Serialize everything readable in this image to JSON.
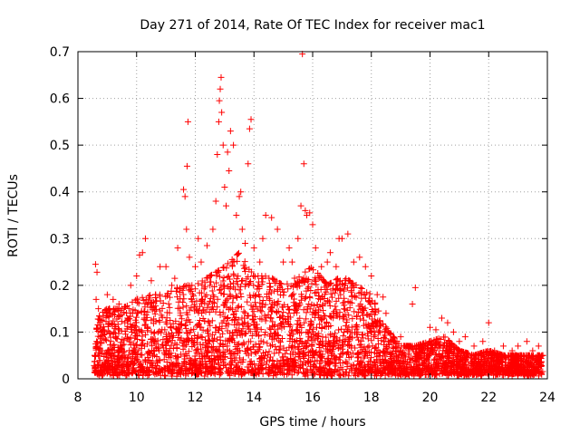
{
  "chart_data": {
    "type": "scatter",
    "title": "Day 271 of 2014, Rate Of TEC Index for receiver mac1",
    "xlabel": "GPS time / hours",
    "ylabel": "ROTI / TECUs",
    "xlim": [
      8,
      24
    ],
    "ylim": [
      0,
      0.7
    ],
    "grid": true,
    "x_ticks": [
      8,
      10,
      12,
      14,
      16,
      18,
      20,
      22,
      24
    ],
    "x_tick_labels": [
      "8",
      "10",
      "12",
      "14",
      "16",
      "18",
      "20",
      "22",
      "24"
    ],
    "y_ticks": [
      0,
      0.1,
      0.2,
      0.3,
      0.4,
      0.5,
      0.6,
      0.7
    ],
    "y_tick_labels": [
      "0",
      "0.1",
      "0.2",
      "0.3",
      "0.4",
      "0.5",
      "0.6",
      "0.7"
    ],
    "marker": "+",
    "series": [
      {
        "name": "mac1 ROTI",
        "color": "#ff0000",
        "points": [
          [
            8.6,
            0.245
          ],
          [
            8.65,
            0.228
          ],
          [
            8.62,
            0.17
          ],
          [
            8.7,
            0.15
          ],
          [
            8.75,
            0.12
          ],
          [
            8.8,
            0.1
          ],
          [
            9.0,
            0.18
          ],
          [
            9.2,
            0.17
          ],
          [
            9.4,
            0.16
          ],
          [
            9.6,
            0.12
          ],
          [
            9.8,
            0.2
          ],
          [
            10.0,
            0.22
          ],
          [
            10.1,
            0.265
          ],
          [
            10.2,
            0.27
          ],
          [
            10.3,
            0.3
          ],
          [
            10.5,
            0.21
          ],
          [
            10.8,
            0.24
          ],
          [
            11.0,
            0.24
          ],
          [
            11.2,
            0.2
          ],
          [
            11.3,
            0.215
          ],
          [
            11.4,
            0.28
          ],
          [
            11.6,
            0.405
          ],
          [
            11.65,
            0.39
          ],
          [
            11.7,
            0.32
          ],
          [
            11.72,
            0.455
          ],
          [
            11.75,
            0.55
          ],
          [
            11.8,
            0.26
          ],
          [
            12.0,
            0.24
          ],
          [
            12.1,
            0.3
          ],
          [
            12.2,
            0.25
          ],
          [
            12.4,
            0.285
          ],
          [
            12.5,
            0.2
          ],
          [
            12.6,
            0.32
          ],
          [
            12.7,
            0.38
          ],
          [
            12.75,
            0.48
          ],
          [
            12.8,
            0.55
          ],
          [
            12.82,
            0.595
          ],
          [
            12.85,
            0.62
          ],
          [
            12.88,
            0.645
          ],
          [
            12.9,
            0.57
          ],
          [
            12.95,
            0.5
          ],
          [
            13.0,
            0.41
          ],
          [
            13.05,
            0.37
          ],
          [
            13.1,
            0.485
          ],
          [
            13.15,
            0.445
          ],
          [
            13.2,
            0.53
          ],
          [
            13.3,
            0.5
          ],
          [
            13.4,
            0.35
          ],
          [
            13.5,
            0.39
          ],
          [
            13.55,
            0.4
          ],
          [
            13.6,
            0.32
          ],
          [
            13.7,
            0.29
          ],
          [
            13.8,
            0.46
          ],
          [
            13.85,
            0.535
          ],
          [
            13.9,
            0.555
          ],
          [
            14.0,
            0.28
          ],
          [
            14.2,
            0.25
          ],
          [
            14.3,
            0.3
          ],
          [
            14.4,
            0.35
          ],
          [
            14.6,
            0.345
          ],
          [
            14.8,
            0.32
          ],
          [
            15.0,
            0.25
          ],
          [
            15.2,
            0.28
          ],
          [
            15.3,
            0.25
          ],
          [
            15.5,
            0.3
          ],
          [
            15.6,
            0.37
          ],
          [
            15.65,
            0.695
          ],
          [
            15.7,
            0.46
          ],
          [
            15.75,
            0.36
          ],
          [
            15.8,
            0.35
          ],
          [
            15.9,
            0.355
          ],
          [
            16.0,
            0.33
          ],
          [
            16.1,
            0.28
          ],
          [
            16.3,
            0.24
          ],
          [
            16.5,
            0.25
          ],
          [
            16.6,
            0.27
          ],
          [
            16.8,
            0.24
          ],
          [
            16.9,
            0.3
          ],
          [
            17.0,
            0.3
          ],
          [
            17.2,
            0.31
          ],
          [
            17.4,
            0.25
          ],
          [
            17.6,
            0.26
          ],
          [
            17.8,
            0.24
          ],
          [
            18.0,
            0.22
          ],
          [
            18.2,
            0.18
          ],
          [
            18.4,
            0.175
          ],
          [
            18.5,
            0.14
          ],
          [
            19.0,
            0.09
          ],
          [
            19.4,
            0.16
          ],
          [
            19.5,
            0.195
          ],
          [
            19.8,
            0.07
          ],
          [
            20.0,
            0.11
          ],
          [
            20.2,
            0.105
          ],
          [
            20.4,
            0.13
          ],
          [
            20.6,
            0.12
          ],
          [
            20.8,
            0.1
          ],
          [
            21.0,
            0.08
          ],
          [
            21.2,
            0.09
          ],
          [
            21.5,
            0.07
          ],
          [
            21.8,
            0.08
          ],
          [
            22.0,
            0.12
          ],
          [
            22.2,
            0.06
          ],
          [
            22.5,
            0.07
          ],
          [
            22.8,
            0.06
          ],
          [
            23.0,
            0.07
          ],
          [
            23.3,
            0.08
          ],
          [
            23.5,
            0.06
          ],
          [
            23.7,
            0.07
          ]
        ],
        "envelope": [
          [
            8.6,
            0.13
          ],
          [
            9.0,
            0.15
          ],
          [
            9.5,
            0.15
          ],
          [
            10.0,
            0.17
          ],
          [
            10.5,
            0.18
          ],
          [
            11.0,
            0.18
          ],
          [
            11.5,
            0.2
          ],
          [
            12.0,
            0.2
          ],
          [
            12.5,
            0.22
          ],
          [
            13.0,
            0.24
          ],
          [
            13.5,
            0.27
          ],
          [
            14.0,
            0.22
          ],
          [
            14.5,
            0.22
          ],
          [
            15.0,
            0.2
          ],
          [
            15.5,
            0.22
          ],
          [
            16.0,
            0.24
          ],
          [
            16.5,
            0.2
          ],
          [
            17.0,
            0.22
          ],
          [
            17.5,
            0.2
          ],
          [
            18.0,
            0.18
          ],
          [
            18.5,
            0.11
          ],
          [
            19.0,
            0.07
          ],
          [
            19.5,
            0.07
          ],
          [
            20.0,
            0.08
          ],
          [
            20.5,
            0.09
          ],
          [
            21.0,
            0.06
          ],
          [
            21.5,
            0.05
          ],
          [
            22.0,
            0.06
          ],
          [
            22.5,
            0.05
          ],
          [
            23.0,
            0.05
          ],
          [
            23.5,
            0.05
          ],
          [
            23.85,
            0.05
          ]
        ],
        "x_range": [
          8.55,
          23.85
        ]
      }
    ]
  }
}
